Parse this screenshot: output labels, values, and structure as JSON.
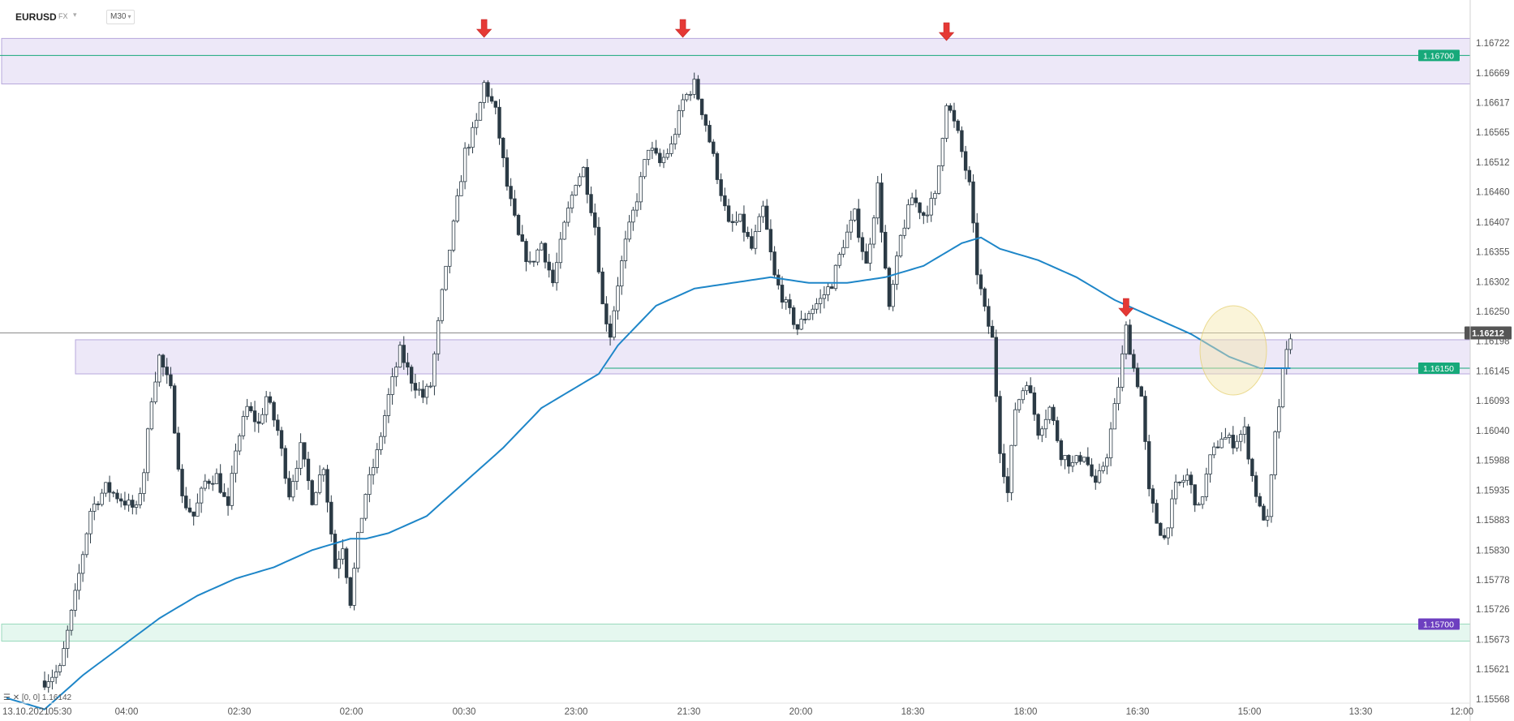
{
  "header": {
    "symbol": "EURUSD",
    "market": "FX",
    "timeframe": "M30"
  },
  "legend_text": "[0, 0]  1.16142",
  "colors": {
    "bull": "#ffffff",
    "bear": "#2b3a45",
    "wick": "#2b3a45",
    "ma": "#1e86c8",
    "zone_purple": "#ede8f8",
    "zone_purple_border": "#b7a8dc",
    "zone_green": "#e5f7ef",
    "zone_green_border": "#9ad9bd",
    "level_green": "#17a97a",
    "level_purple": "#6d3fc0",
    "arrow": "#e53935",
    "price_label": "#555555"
  },
  "chart_data": {
    "type": "candlestick",
    "title": "",
    "ylim": [
      1.1554,
      1.1676
    ],
    "y_ticks": [
      "1.16722",
      "1.16669",
      "1.16617",
      "1.16565",
      "1.16512",
      "1.16460",
      "1.16407",
      "1.16355",
      "1.16302",
      "1.16250",
      "1.16198",
      "1.16145",
      "1.16093",
      "1.16040",
      "1.15988",
      "1.15935",
      "1.15883",
      "1.15830",
      "1.15778",
      "1.15726",
      "1.15673",
      "1.15621",
      "1.15568"
    ],
    "x_ticks": [
      "13.10.2021",
      "05:30",
      "04:00",
      "02:30",
      "02:00",
      "00:30",
      "23:00",
      "21:30",
      "20:00",
      "18:30",
      "18:00",
      "16:30",
      "15:00",
      "13:30",
      "12:00"
    ],
    "current_price": "1.16212",
    "levels": [
      {
        "value": "1.16700",
        "color": "green"
      },
      {
        "value": "1.16150",
        "color": "green"
      },
      {
        "value": "1.15700",
        "color": "purple"
      }
    ],
    "zones": [
      {
        "from": 1.1665,
        "to": 1.1673,
        "color": "purple"
      },
      {
        "from": 1.1614,
        "to": 1.162,
        "color": "purple"
      },
      {
        "from": 1.1567,
        "to": 1.157,
        "color": "green"
      }
    ],
    "resistance_touches": 4,
    "highlight_circle": true,
    "close_anchors": [
      [
        0,
        1.156
      ],
      [
        4,
        1.1562
      ],
      [
        8,
        1.1575
      ],
      [
        12,
        1.159
      ],
      [
        16,
        1.1594
      ],
      [
        20,
        1.1592
      ],
      [
        24,
        1.159
      ],
      [
        26,
        1.1597
      ],
      [
        28,
        1.161
      ],
      [
        30,
        1.1617
      ],
      [
        33,
        1.1611
      ],
      [
        36,
        1.1592
      ],
      [
        39,
        1.1589
      ],
      [
        42,
        1.1595
      ],
      [
        45,
        1.1596
      ],
      [
        48,
        1.159
      ],
      [
        50,
        1.1601
      ],
      [
        53,
        1.1608
      ],
      [
        56,
        1.1605
      ],
      [
        58,
        1.161
      ],
      [
        61,
        1.1604
      ],
      [
        64,
        1.1593
      ],
      [
        67,
        1.1601
      ],
      [
        70,
        1.1592
      ],
      [
        73,
        1.1598
      ],
      [
        76,
        1.158
      ],
      [
        78,
        1.1584
      ],
      [
        80,
        1.1574
      ],
      [
        82,
        1.1585
      ],
      [
        84,
        1.1593
      ],
      [
        87,
        1.16
      ],
      [
        90,
        1.161
      ],
      [
        93,
        1.1618
      ],
      [
        96,
        1.1613
      ],
      [
        99,
        1.161
      ],
      [
        101,
        1.1612
      ],
      [
        104,
        1.1628
      ],
      [
        107,
        1.164
      ],
      [
        110,
        1.1653
      ],
      [
        113,
        1.1658
      ],
      [
        115,
        1.1665
      ],
      [
        118,
        1.166
      ],
      [
        121,
        1.1647
      ],
      [
        124,
        1.1638
      ],
      [
        127,
        1.1633
      ],
      [
        130,
        1.1637
      ],
      [
        133,
        1.163
      ],
      [
        136,
        1.164
      ],
      [
        139,
        1.1648
      ],
      [
        141,
        1.165
      ],
      [
        144,
        1.164
      ],
      [
        146,
        1.1626
      ],
      [
        148,
        1.1621
      ],
      [
        150,
        1.163
      ],
      [
        152,
        1.1637
      ],
      [
        155,
        1.1645
      ],
      [
        158,
        1.1654
      ],
      [
        161,
        1.1651
      ],
      [
        164,
        1.1654
      ],
      [
        167,
        1.1662
      ],
      [
        170,
        1.1665
      ],
      [
        173,
        1.1658
      ],
      [
        176,
        1.1649
      ],
      [
        179,
        1.164
      ],
      [
        182,
        1.1641
      ],
      [
        185,
        1.1636
      ],
      [
        188,
        1.1643
      ],
      [
        191,
        1.1631
      ],
      [
        194,
        1.1626
      ],
      [
        197,
        1.1622
      ],
      [
        200,
        1.1625
      ],
      [
        203,
        1.1627
      ],
      [
        206,
        1.163
      ],
      [
        209,
        1.1637
      ],
      [
        212,
        1.1642
      ],
      [
        215,
        1.1633
      ],
      [
        218,
        1.1647
      ],
      [
        221,
        1.1625
      ],
      [
        224,
        1.1638
      ],
      [
        227,
        1.1645
      ],
      [
        230,
        1.1642
      ],
      [
        233,
        1.1645
      ],
      [
        236,
        1.1662
      ],
      [
        239,
        1.1656
      ],
      [
        242,
        1.1647
      ],
      [
        244,
        1.1632
      ],
      [
        246,
        1.1625
      ],
      [
        248,
        1.162
      ],
      [
        250,
        1.1601
      ],
      [
        252,
        1.1593
      ],
      [
        254,
        1.1608
      ],
      [
        257,
        1.1613
      ],
      [
        260,
        1.1604
      ],
      [
        263,
        1.1608
      ],
      [
        266,
        1.16
      ],
      [
        269,
        1.1598
      ],
      [
        272,
        1.16
      ],
      [
        275,
        1.1594
      ],
      [
        278,
        1.16
      ],
      [
        281,
        1.1612
      ],
      [
        283,
        1.1622
      ],
      [
        285,
        1.1615
      ],
      [
        287,
        1.161
      ],
      [
        289,
        1.1593
      ],
      [
        291,
        1.1588
      ],
      [
        293,
        1.1585
      ],
      [
        296,
        1.1594
      ],
      [
        299,
        1.1596
      ],
      [
        302,
        1.159
      ],
      [
        305,
        1.1599
      ],
      [
        308,
        1.1603
      ],
      [
        311,
        1.1602
      ],
      [
        314,
        1.1604
      ],
      [
        316,
        1.1596
      ],
      [
        318,
        1.159
      ],
      [
        320,
        1.1588
      ],
      [
        322,
        1.1603
      ],
      [
        324,
        1.1614
      ],
      [
        326,
        1.1621
      ]
    ],
    "ma_anchors": [
      [
        0,
        1.1555
      ],
      [
        10,
        1.1561
      ],
      [
        20,
        1.1566
      ],
      [
        30,
        1.1571
      ],
      [
        40,
        1.1575
      ],
      [
        50,
        1.1578
      ],
      [
        60,
        1.158
      ],
      [
        70,
        1.1583
      ],
      [
        80,
        1.1585
      ],
      [
        84,
        1.1585
      ],
      [
        90,
        1.1586
      ],
      [
        100,
        1.1589
      ],
      [
        110,
        1.1595
      ],
      [
        120,
        1.1601
      ],
      [
        130,
        1.1608
      ],
      [
        140,
        1.1612
      ],
      [
        145,
        1.1614
      ],
      [
        150,
        1.1619
      ],
      [
        160,
        1.1626
      ],
      [
        170,
        1.1629
      ],
      [
        180,
        1.163
      ],
      [
        190,
        1.1631
      ],
      [
        200,
        1.163
      ],
      [
        210,
        1.163
      ],
      [
        220,
        1.1631
      ],
      [
        230,
        1.1633
      ],
      [
        235,
        1.1635
      ],
      [
        240,
        1.1637
      ],
      [
        245,
        1.1638
      ],
      [
        250,
        1.1636
      ],
      [
        260,
        1.1634
      ],
      [
        270,
        1.1631
      ],
      [
        280,
        1.1627
      ],
      [
        290,
        1.1624
      ],
      [
        300,
        1.1621
      ],
      [
        310,
        1.1617
      ],
      [
        318,
        1.1615
      ],
      [
        326,
        1.1615
      ]
    ]
  }
}
